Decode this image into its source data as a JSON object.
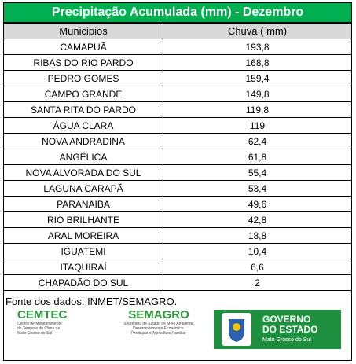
{
  "header": {
    "title": "Precipitação Acumulada (mm) - Dezembro"
  },
  "table": {
    "columns": [
      "Municipios",
      "Chuva ( mm)"
    ],
    "rows": [
      [
        "CAMAPUÃ",
        "193,8"
      ],
      [
        "RIBAS DO RIO PARDO",
        "168,8"
      ],
      [
        "PEDRO GOMES",
        "159,4"
      ],
      [
        "CAMPO GRANDE",
        "149,8"
      ],
      [
        "SANTA RITA DO PARDO",
        "119,8"
      ],
      [
        "ÁGUA CLARA",
        "119"
      ],
      [
        "NOVA ANDRADINA",
        "62,4"
      ],
      [
        "ANGÉLICA",
        "61,8"
      ],
      [
        "NOVA ALVORADA DO SUL",
        "55,4"
      ],
      [
        "LAGUNA CARAPÃ",
        "53,4"
      ],
      [
        "PARANAIBA",
        "49,6"
      ],
      [
        "RIO BRILHANTE",
        "42,8"
      ],
      [
        "ARAL MOREIRA",
        "18,8"
      ],
      [
        "IGUATEMI",
        "10,4"
      ],
      [
        "ITAQUIRAÍ",
        "6,6"
      ],
      [
        "CHAPADÃO DO SUL",
        "2"
      ]
    ]
  },
  "footer": {
    "source": "Fonte dos dados: INMET/SEMAGRO.",
    "logos": {
      "cemtec": {
        "name": "CEMTEC",
        "lines": [
          "Centro de Monitoramento",
          "do Tempo e do Clima de",
          "Mato Grosso do Sul"
        ]
      },
      "semagro": {
        "name": "SEMAGRO",
        "lines": [
          "Secretaria de Estado de Meio Ambiente,",
          "Desenvolvimento Econômico,",
          "Produção e Agricultura Familiar"
        ]
      },
      "governo": {
        "lines": [
          "GOVERNO",
          "DO ESTADO"
        ],
        "state": "Mato Grosso do Sul"
      }
    }
  }
}
